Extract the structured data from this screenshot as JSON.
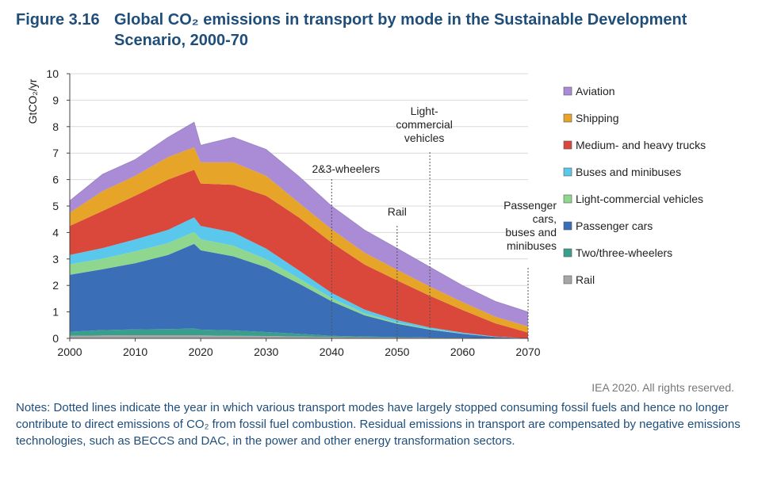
{
  "header": {
    "figure_number": "Figure 3.16",
    "title": "Global CO₂ emissions in transport by mode in the Sustainable Development Scenario, 2000-70"
  },
  "credit": "IEA 2020. All rights reserved.",
  "notes": "Notes: Dotted lines indicate the year in which various transport modes have largely stopped consuming fossil fuels and hence no longer contribute to direct emissions of CO₂ from fossil fuel combustion. Residual emissions in transport are compensated by negative emissions technologies, such as BECCS and DAC, in the power and other energy transformation sectors.",
  "chart_data": {
    "type": "area",
    "stacked": true,
    "ylabel": "GtCO₂/yr",
    "xlabel": "",
    "ylim": [
      0,
      10
    ],
    "xlim": [
      2000,
      2070
    ],
    "x_ticks": [
      2000,
      2010,
      2020,
      2030,
      2040,
      2050,
      2060,
      2070
    ],
    "y_ticks": [
      0,
      1,
      2,
      3,
      4,
      5,
      6,
      7,
      8,
      9,
      10
    ],
    "legend_position": "right",
    "x": [
      2000,
      2005,
      2010,
      2015,
      2019,
      2020,
      2025,
      2030,
      2035,
      2040,
      2045,
      2050,
      2055,
      2060,
      2065,
      2070
    ],
    "series": [
      {
        "name": "Rail",
        "color": "#a6a6a6",
        "values": [
          0.1,
          0.11,
          0.12,
          0.12,
          0.12,
          0.11,
          0.1,
          0.09,
          0.07,
          0.05,
          0.04,
          0.03,
          0.02,
          0.01,
          0.0,
          0.0
        ]
      },
      {
        "name": "Two/three-wheelers",
        "color": "#3a9e8c",
        "values": [
          0.15,
          0.2,
          0.22,
          0.23,
          0.25,
          0.22,
          0.2,
          0.15,
          0.1,
          0.05,
          0.03,
          0.02,
          0.01,
          0.01,
          0.0,
          0.0
        ]
      },
      {
        "name": "Passenger cars",
        "color": "#3a6fb7",
        "values": [
          2.15,
          2.3,
          2.5,
          2.8,
          3.2,
          3.0,
          2.8,
          2.45,
          1.9,
          1.3,
          0.8,
          0.5,
          0.3,
          0.15,
          0.05,
          0.0
        ]
      },
      {
        "name": "Light-commercial vehicles",
        "color": "#8fd68f",
        "values": [
          0.4,
          0.4,
          0.45,
          0.45,
          0.45,
          0.42,
          0.4,
          0.3,
          0.2,
          0.12,
          0.08,
          0.04,
          0.02,
          0.01,
          0.0,
          0.0
        ]
      },
      {
        "name": "Buses and minibuses",
        "color": "#5ac8ec",
        "values": [
          0.35,
          0.4,
          0.45,
          0.5,
          0.55,
          0.5,
          0.5,
          0.4,
          0.3,
          0.2,
          0.14,
          0.1,
          0.06,
          0.04,
          0.02,
          0.0
        ]
      },
      {
        "name": "Medium- and heavy trucks",
        "color": "#d9483b",
        "values": [
          1.1,
          1.4,
          1.65,
          1.9,
          1.8,
          1.6,
          1.8,
          2.0,
          2.0,
          1.9,
          1.7,
          1.5,
          1.2,
          0.85,
          0.5,
          0.22
        ]
      },
      {
        "name": "Shipping",
        "color": "#e6a428",
        "values": [
          0.5,
          0.75,
          0.75,
          0.85,
          0.85,
          0.8,
          0.85,
          0.75,
          0.55,
          0.5,
          0.45,
          0.4,
          0.35,
          0.3,
          0.25,
          0.23
        ]
      },
      {
        "name": "Aviation",
        "color": "#a98bd6",
        "values": [
          0.45,
          0.64,
          0.62,
          0.75,
          0.95,
          0.65,
          0.95,
          1.0,
          1.0,
          0.88,
          0.86,
          0.81,
          0.74,
          0.63,
          0.58,
          0.55
        ]
      }
    ],
    "legend_order": [
      "Aviation",
      "Shipping",
      "Medium- and heavy trucks",
      "Buses and minibuses",
      "Light-commercial vehicles",
      "Passenger cars",
      "Two/three-wheelers",
      "Rail"
    ],
    "annotations": [
      {
        "x": 2040,
        "lines": [
          "2&3-wheelers"
        ]
      },
      {
        "x": 2050,
        "lines": [
          "Rail"
        ]
      },
      {
        "x": 2055,
        "lines": [
          "Light-",
          "commercial",
          "vehicles"
        ]
      },
      {
        "x": 2070,
        "lines": [
          "Passenger",
          "cars,",
          "buses and",
          "minibuses"
        ]
      }
    ]
  }
}
